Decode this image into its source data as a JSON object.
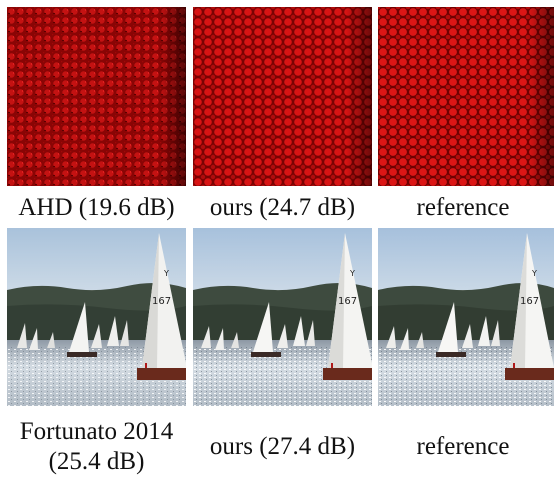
{
  "figure": {
    "row1": {
      "panels": [
        {
          "caption": "AHD (19.6 dB)"
        },
        {
          "caption": "ours (24.7 dB)"
        },
        {
          "caption": "reference"
        }
      ]
    },
    "row2": {
      "panels": [
        {
          "caption_line1": "Fortunato 2014",
          "caption_line2": "(25.4 dB)"
        },
        {
          "caption": "ours (27.4 dB)"
        },
        {
          "caption": "reference"
        }
      ],
      "sail_number": "167"
    },
    "colors": {
      "fabric_dark": "#5a0000",
      "fabric_red": "#d01010",
      "sky": "#b9cde0",
      "hills": "#3c4a3c",
      "water": "#c9d2da",
      "sail": "#f2f2f0"
    }
  }
}
